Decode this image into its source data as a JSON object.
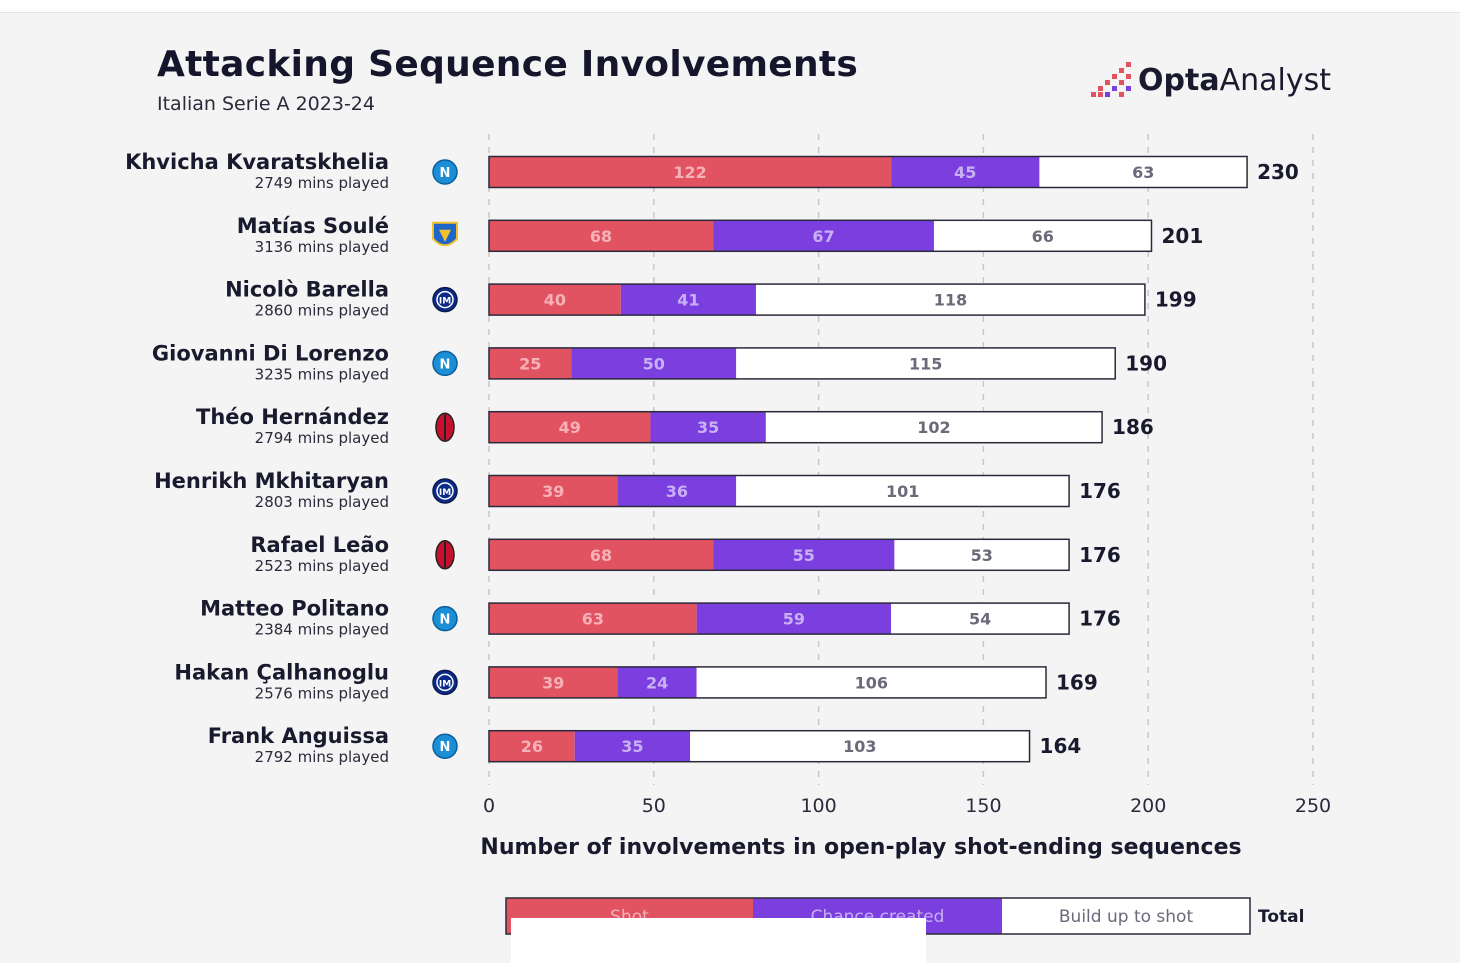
{
  "header": {
    "title": "Attacking Sequence Involvements",
    "subtitle": "Italian Serie A 2023-24"
  },
  "brand": {
    "bold": "Opta",
    "light": "Analyst",
    "icon": "opta-dots-logo"
  },
  "colors": {
    "shot": "#e15361",
    "chance_created": "#7b3fe0",
    "build_up": "#ffffff",
    "text": "#1a1a2e",
    "grid": "#c8c8cc"
  },
  "chart_data": {
    "type": "bar",
    "orientation": "horizontal",
    "stacked": true,
    "xlabel": "Number of involvements in open-play shot-ending sequences",
    "xlim": [
      0,
      250
    ],
    "xticks": [
      "0",
      "50",
      "100",
      "150",
      "200",
      "250"
    ],
    "grid": true,
    "legend_position": "bottom",
    "categories": [
      "Khvicha Kvaratskhelia",
      "Matías Soulé",
      "Nicolò Barella",
      "Giovanni Di Lorenzo",
      "Théo Hernández",
      "Henrikh Mkhitaryan",
      "Rafael Leão",
      "Matteo Politano",
      "Hakan Çalhanoglu",
      "Frank Anguissa"
    ],
    "subtitles": [
      "2749 mins played",
      "3136 mins played",
      "2860 mins played",
      "3235 mins played",
      "2794 mins played",
      "2803 mins played",
      "2523 mins played",
      "2384 mins played",
      "2576 mins played",
      "2792 mins played"
    ],
    "club_icons": [
      "napoli-badge-icon",
      "frosinone-badge-icon",
      "inter-badge-icon",
      "napoli-badge-icon",
      "milan-badge-icon",
      "inter-badge-icon",
      "milan-badge-icon",
      "napoli-badge-icon",
      "inter-badge-icon",
      "napoli-badge-icon"
    ],
    "series": [
      {
        "name": "Shot",
        "values": [
          122,
          68,
          40,
          25,
          49,
          39,
          68,
          63,
          39,
          26
        ]
      },
      {
        "name": "Chance created",
        "values": [
          45,
          67,
          41,
          50,
          35,
          36,
          55,
          59,
          24,
          35
        ]
      },
      {
        "name": "Build up to shot",
        "values": [
          63,
          66,
          118,
          115,
          102,
          101,
          53,
          54,
          106,
          103
        ]
      }
    ],
    "totals": [
      230,
      201,
      199,
      190,
      186,
      176,
      176,
      176,
      169,
      164
    ],
    "total_label": "Total"
  }
}
